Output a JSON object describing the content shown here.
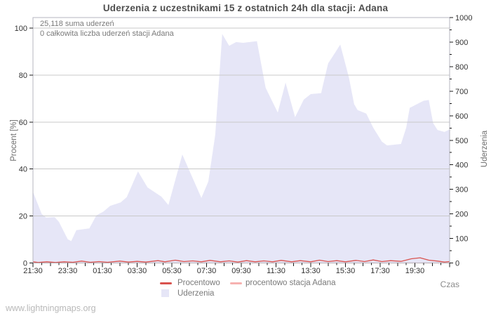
{
  "page": {
    "footer": "www.lightningmaps.org"
  },
  "colors": {
    "area_fill": "#e6e6f7",
    "line_percent": "#d9534f",
    "line_station": "#f6b2b0",
    "grid": "#c9c9c9",
    "border": "#b6b6bf",
    "tick": "#1a1a1a"
  },
  "chart_data": {
    "type": "area",
    "title": "Uderzenia z uczestnikami 15 z ostatnich 24h dla stacji: Adana",
    "annotations": [
      "25,118 suma uderzeń",
      "0 całkowita liczba uderzeń stacji Adana"
    ],
    "x_axis": {
      "label": "Czas",
      "hours_span": 24,
      "start_time": "21:30",
      "tick_interval_hours": 2,
      "minor_tick_hours": 0.5,
      "tick_labels": [
        "21:30",
        "23:30",
        "01:30",
        "03:30",
        "05:30",
        "07:30",
        "09:30",
        "11:30",
        "13:30",
        "15:30",
        "17:30",
        "19:30"
      ]
    },
    "y_left": {
      "label": "Procent  [%]",
      "min": 0,
      "max": 100,
      "ticks": [
        0,
        20,
        40,
        60,
        80,
        100
      ]
    },
    "y_right": {
      "label": "Uderzenia",
      "min": 0,
      "max": 1000,
      "ticks": [
        0,
        100,
        200,
        300,
        400,
        500,
        600,
        700,
        800,
        900,
        1000
      ],
      "minor_step": 50
    },
    "grid": "horizontal",
    "legend_position": "bottom",
    "series": [
      {
        "name": "Uderzenia",
        "kind": "area",
        "axis": "right",
        "points": [
          [
            0,
            290
          ],
          [
            0.5,
            200
          ],
          [
            0.75,
            185
          ],
          [
            1.25,
            187
          ],
          [
            1.5,
            167
          ],
          [
            2,
            97
          ],
          [
            2.2,
            89
          ],
          [
            2.5,
            134
          ],
          [
            3.25,
            141
          ],
          [
            3.65,
            194
          ],
          [
            4.05,
            209
          ],
          [
            4.45,
            233
          ],
          [
            5.05,
            247
          ],
          [
            5.4,
            268
          ],
          [
            6.05,
            373
          ],
          [
            6.6,
            308
          ],
          [
            7.4,
            270
          ],
          [
            7.8,
            236
          ],
          [
            8.6,
            442
          ],
          [
            9.7,
            265
          ],
          [
            10.1,
            332
          ],
          [
            10.5,
            523
          ],
          [
            10.9,
            933
          ],
          [
            11.3,
            885
          ],
          [
            11.7,
            900
          ],
          [
            12.1,
            897
          ],
          [
            12.9,
            904
          ],
          [
            13.4,
            714
          ],
          [
            14.1,
            613
          ],
          [
            14.55,
            735
          ],
          [
            15.1,
            594
          ],
          [
            15.6,
            666
          ],
          [
            16,
            688
          ],
          [
            16.6,
            692
          ],
          [
            16.7,
            723
          ],
          [
            17,
            813
          ],
          [
            17.4,
            856
          ],
          [
            17.7,
            890
          ],
          [
            18.2,
            756
          ],
          [
            18.5,
            647
          ],
          [
            18.7,
            623
          ],
          [
            19.2,
            609
          ],
          [
            19.6,
            551
          ],
          [
            20.1,
            494
          ],
          [
            20.4,
            479
          ],
          [
            21.2,
            485
          ],
          [
            21.5,
            551
          ],
          [
            21.7,
            632
          ],
          [
            22.5,
            661
          ],
          [
            22.8,
            664
          ],
          [
            23.05,
            570
          ],
          [
            23.3,
            542
          ],
          [
            23.7,
            534
          ],
          [
            24,
            544
          ]
        ]
      },
      {
        "name": "Procentowo",
        "kind": "line",
        "axis": "left",
        "points": [
          [
            0,
            0.5
          ],
          [
            0.3,
            0.2
          ],
          [
            0.8,
            0.5
          ],
          [
            1.3,
            0.2
          ],
          [
            1.8,
            0.5
          ],
          [
            2.3,
            0.3
          ],
          [
            2.8,
            0.8
          ],
          [
            3.3,
            0.3
          ],
          [
            3.8,
            0.6
          ],
          [
            4.3,
            0.3
          ],
          [
            5,
            0.8
          ],
          [
            5.5,
            0.4
          ],
          [
            6,
            0.7
          ],
          [
            6.5,
            0.4
          ],
          [
            7.2,
            1
          ],
          [
            7.6,
            0.5
          ],
          [
            8.2,
            1.2
          ],
          [
            8.7,
            0.6
          ],
          [
            9.2,
            0.9
          ],
          [
            9.7,
            0.5
          ],
          [
            10.2,
            1.1
          ],
          [
            10.8,
            0.5
          ],
          [
            11.3,
            0.9
          ],
          [
            11.8,
            0.4
          ],
          [
            12.3,
            1
          ],
          [
            12.8,
            0.5
          ],
          [
            13.3,
            0.9
          ],
          [
            13.8,
            0.5
          ],
          [
            14.3,
            1.1
          ],
          [
            14.9,
            0.5
          ],
          [
            15.4,
            1
          ],
          [
            16,
            0.5
          ],
          [
            16.5,
            1.2
          ],
          [
            17,
            0.6
          ],
          [
            17.5,
            1
          ],
          [
            18,
            0.5
          ],
          [
            18.6,
            1.1
          ],
          [
            19.1,
            0.6
          ],
          [
            19.6,
            1.3
          ],
          [
            20.1,
            0.6
          ],
          [
            20.6,
            1
          ],
          [
            21.2,
            0.7
          ],
          [
            21.8,
            1.8
          ],
          [
            22.3,
            2.2
          ],
          [
            22.8,
            1.2
          ],
          [
            23.3,
            0.8
          ],
          [
            23.7,
            0.4
          ],
          [
            24,
            0.6
          ]
        ]
      },
      {
        "name": "procentowo stacja Adana",
        "kind": "line",
        "axis": "left",
        "points": [
          [
            0,
            0
          ],
          [
            24,
            0
          ]
        ]
      }
    ]
  }
}
